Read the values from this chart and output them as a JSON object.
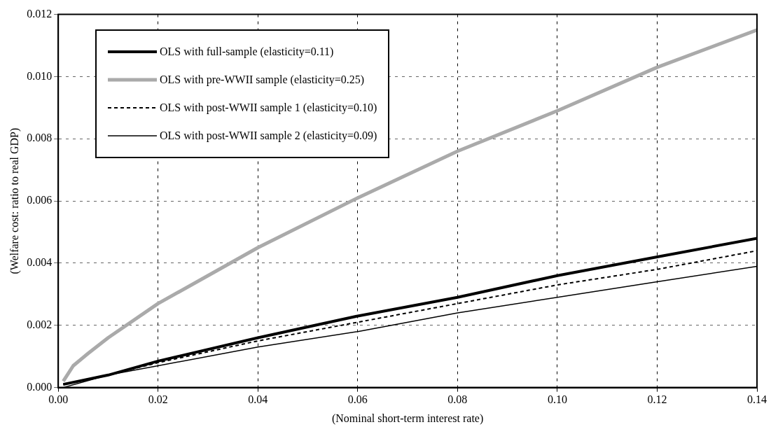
{
  "chart_data": {
    "type": "line",
    "xlabel": "(Nominal short-term interest rate)",
    "ylabel": "(Welfare cost: ratio to real GDP)",
    "xlim": [
      0,
      0.14
    ],
    "xticks": [
      {
        "value": 0,
        "label": "0.00"
      },
      {
        "value": 0.02,
        "label": "0.02"
      },
      {
        "value": 0.04,
        "label": "0.04"
      },
      {
        "value": 0.06,
        "label": "0.06"
      },
      {
        "value": 0.08,
        "label": "0.08"
      },
      {
        "value": 0.1,
        "label": "0.10"
      },
      {
        "value": 0.12,
        "label": "0.12"
      },
      {
        "value": 0.14,
        "label": "0.14"
      }
    ],
    "ylim": [
      0,
      0.012
    ],
    "yticks": [
      {
        "value": 0,
        "label": "0.000"
      },
      {
        "value": 0.002,
        "label": "0.002"
      },
      {
        "value": 0.004,
        "label": "0.004"
      },
      {
        "value": 0.006,
        "label": "0.006"
      },
      {
        "value": 0.008,
        "label": "0.008"
      },
      {
        "value": 0.01,
        "label": "0.010"
      },
      {
        "value": 0.012,
        "label": "0.012"
      }
    ],
    "grid": true,
    "legend": "top left",
    "marker": "none",
    "series": [
      {
        "name": "OLS with full-sample (elasticity=0.11)",
        "color": "#000000",
        "line_style": "solid",
        "x": [
          0.001,
          0.01,
          0.02,
          0.04,
          0.06,
          0.08,
          0.1,
          0.12,
          0.14
        ],
        "values": [
          0.0001,
          0.0004,
          0.00085,
          0.0016,
          0.0023,
          0.0029,
          0.0036,
          0.0042,
          0.0048
        ]
      },
      {
        "name": "OLS with pre-WWII sample (elasticity=0.25)",
        "color": "#aaaaaa",
        "line_style": "solid",
        "x": [
          0.001,
          0.003,
          0.006,
          0.01,
          0.02,
          0.03,
          0.04,
          0.06,
          0.08,
          0.1,
          0.12,
          0.14
        ],
        "values": [
          0.0002,
          0.0007,
          0.0011,
          0.0016,
          0.0027,
          0.0036,
          0.0045,
          0.0061,
          0.0076,
          0.0089,
          0.0103,
          0.0115
        ]
      },
      {
        "name": "OLS with post-WWII sample 1 (elasticity=0.10)",
        "color": "#000000",
        "line_style": "dashed",
        "x": [
          0.001,
          0.01,
          0.02,
          0.04,
          0.06,
          0.08,
          0.1,
          0.12,
          0.14
        ],
        "values": [
          0.0001,
          0.0004,
          0.0008,
          0.0015,
          0.0021,
          0.0027,
          0.0033,
          0.0038,
          0.0044
        ]
      },
      {
        "name": "OLS with post-WWII sample 2 (elasticity=0.09)",
        "color": "#000000",
        "line_style": "solid",
        "x": [
          0.001,
          0.01,
          0.02,
          0.04,
          0.06,
          0.08,
          0.1,
          0.12,
          0.14
        ],
        "values": [
          0,
          0.0004,
          0.0007,
          0.0013,
          0.0018,
          0.0024,
          0.0029,
          0.0034,
          0.0039
        ]
      }
    ]
  }
}
